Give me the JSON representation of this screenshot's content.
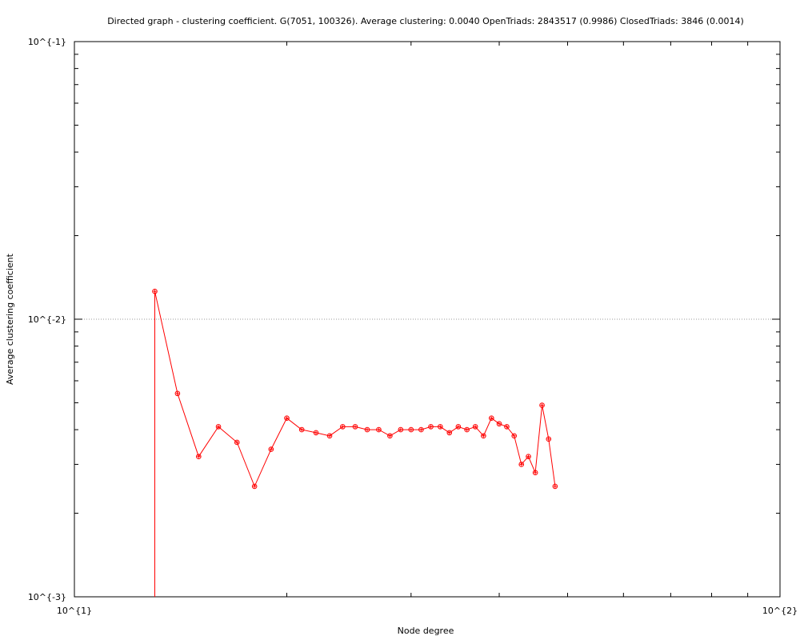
{
  "chart_data": {
    "type": "line",
    "title": "Directed graph - clustering coefficient. G(7051, 100326). Average clustering: 0.0040  OpenTriads: 2843517 (0.9986)  ClosedTriads: 3846 (0.0014)",
    "xlabel": "Node degree",
    "ylabel": "Average clustering coefficient",
    "xscale": "log",
    "yscale": "log",
    "xlim": [
      10,
      100
    ],
    "ylim": [
      0.001,
      0.1
    ],
    "x_tick_labels": [
      "10^{1}",
      "10^{2}"
    ],
    "y_tick_labels": [
      "10^{-3}",
      "10^{-2}",
      "10^{-1}"
    ],
    "grid": "dotted line at y = 10^{-2}",
    "color": "#ff0000",
    "series": [
      {
        "points": [
          [
            13,
            0.0001
          ],
          [
            13,
            0.0126
          ],
          [
            14,
            0.0054
          ],
          [
            15,
            0.0032
          ],
          [
            16,
            0.0041
          ],
          [
            17,
            0.0036
          ],
          [
            18,
            0.0025
          ],
          [
            19,
            0.0034
          ],
          [
            20,
            0.0044
          ],
          [
            21,
            0.004
          ],
          [
            22,
            0.0039
          ],
          [
            23,
            0.0038
          ],
          [
            24,
            0.0041
          ],
          [
            25,
            0.0041
          ],
          [
            26,
            0.004
          ],
          [
            27,
            0.004
          ],
          [
            28,
            0.0038
          ],
          [
            29,
            0.004
          ],
          [
            30,
            0.004
          ],
          [
            31,
            0.004
          ],
          [
            32,
            0.0041
          ],
          [
            33,
            0.0041
          ],
          [
            34,
            0.0039
          ],
          [
            35,
            0.0041
          ],
          [
            36,
            0.004
          ],
          [
            37,
            0.0041
          ],
          [
            38,
            0.0038
          ],
          [
            39,
            0.0044
          ],
          [
            40,
            0.0042
          ],
          [
            41,
            0.0041
          ],
          [
            42,
            0.0038
          ],
          [
            43,
            0.003
          ],
          [
            44,
            0.0032
          ],
          [
            45,
            0.0028
          ],
          [
            46,
            0.0049
          ],
          [
            47,
            0.0037
          ],
          [
            48,
            0.0025
          ]
        ]
      }
    ]
  }
}
